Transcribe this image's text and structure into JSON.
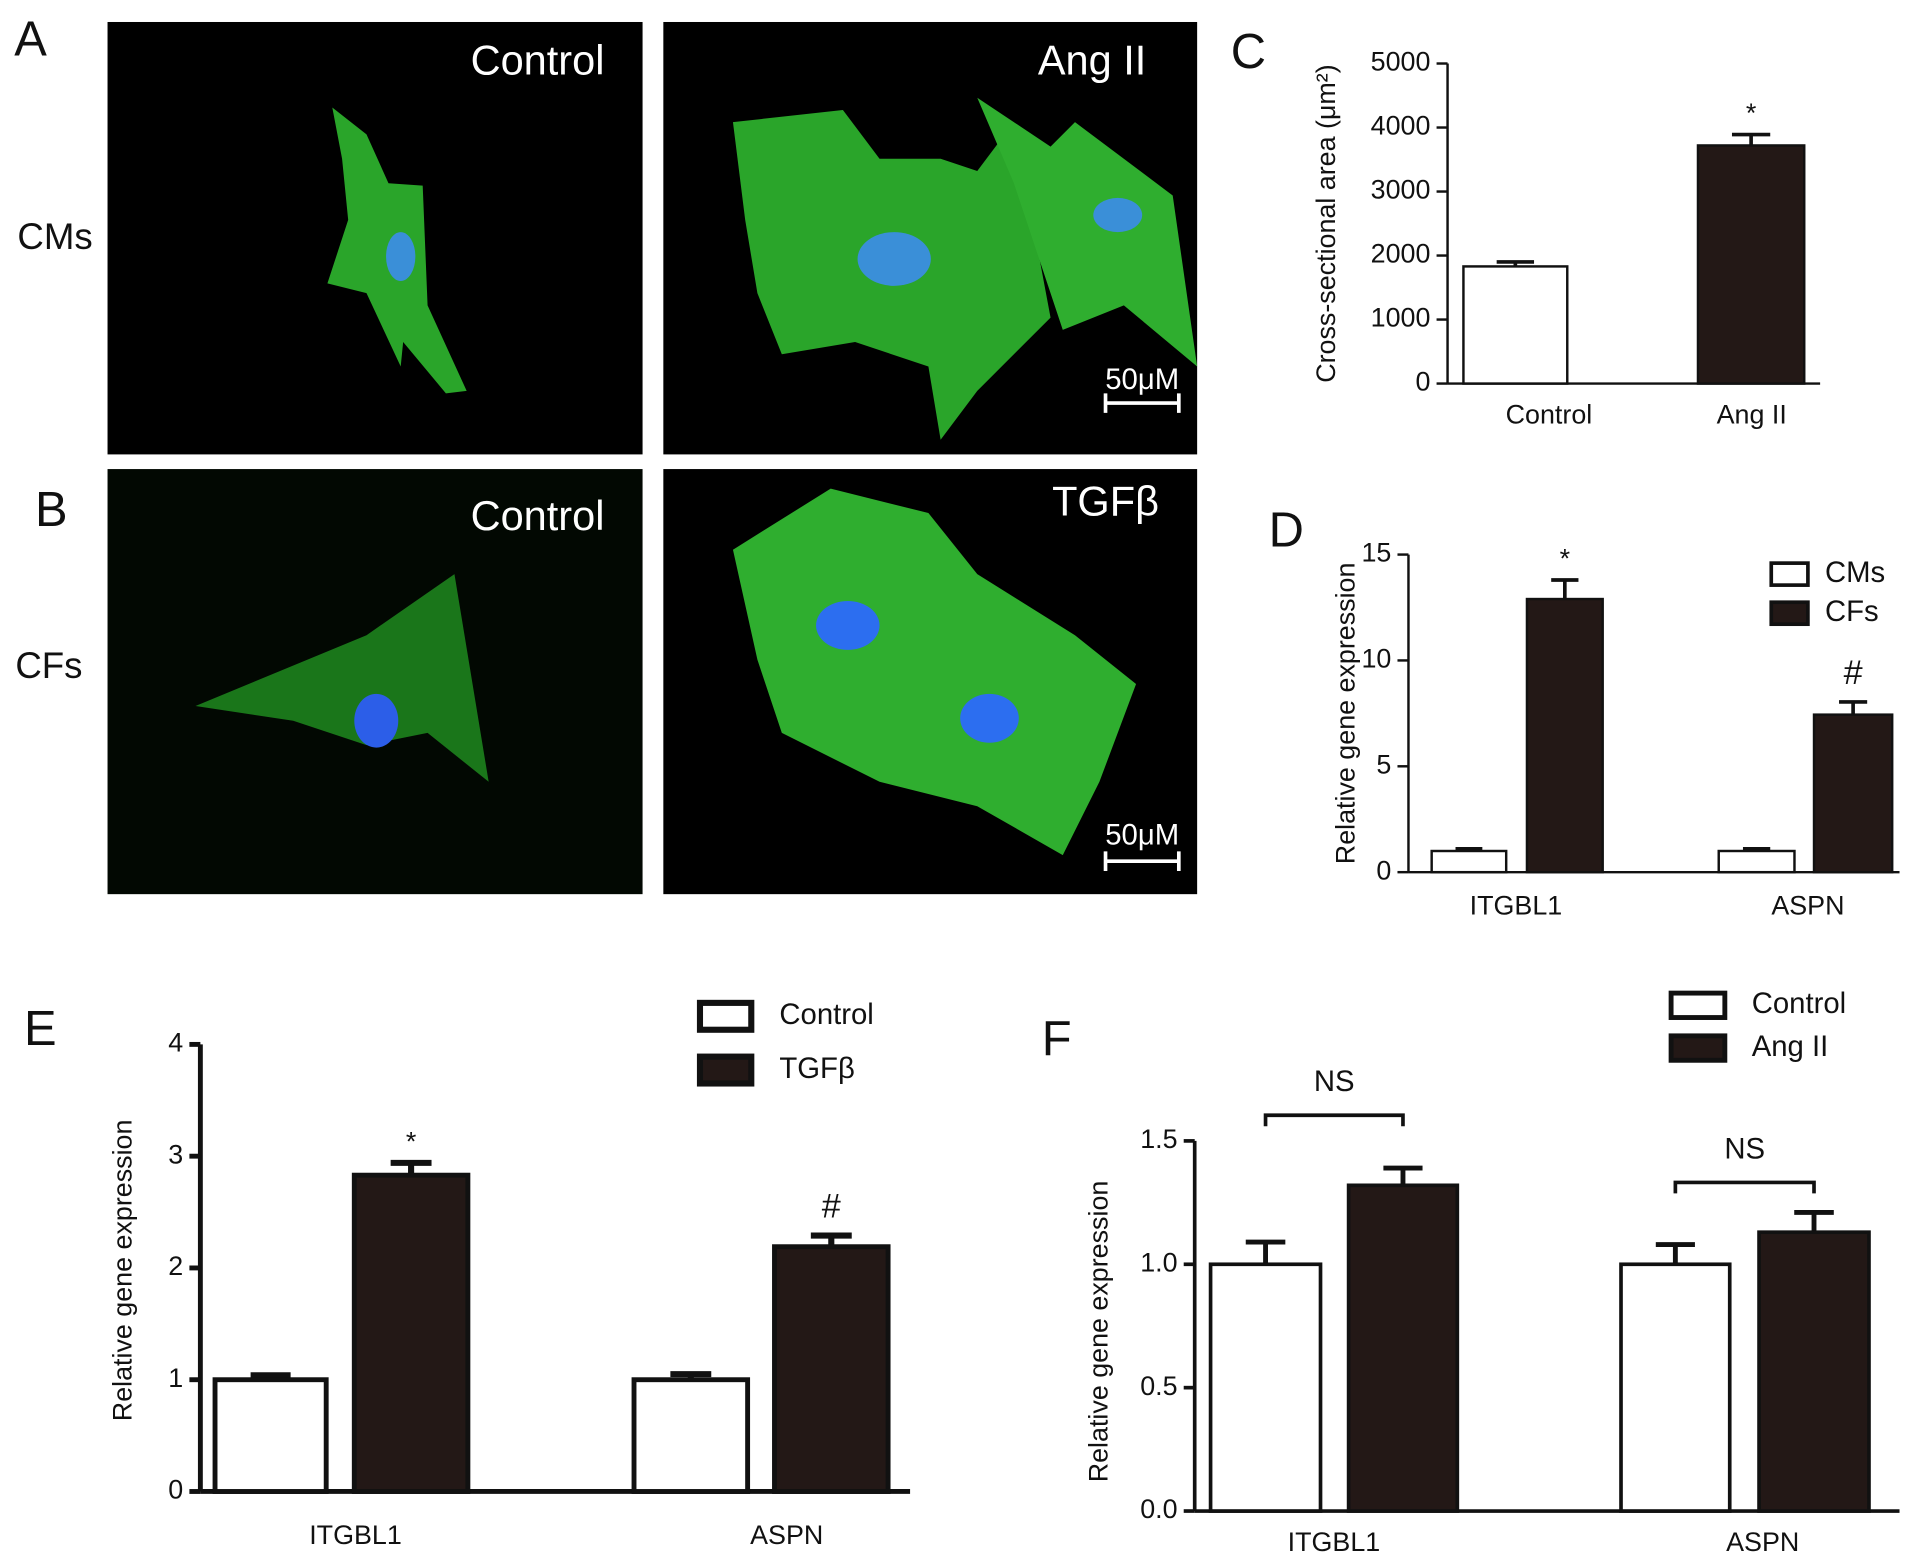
{
  "figure": {
    "rows": [
      {
        "label": "A",
        "row_label": "CMs",
        "panes": [
          {
            "title": "Control"
          },
          {
            "title": "Ang II",
            "scale_bar": "50μM"
          }
        ]
      },
      {
        "label": "B",
        "row_label": "CFs",
        "panes": [
          {
            "title": "Control"
          },
          {
            "title": "TGFβ",
            "scale_bar": "50μM"
          }
        ]
      }
    ]
  },
  "chart_data": [
    {
      "type": "bar",
      "label": "C",
      "ylabel": "Cross-sectional area (μm²)",
      "categories": [
        "Control",
        "Ang II"
      ],
      "values": [
        1830,
        3720
      ],
      "errors": [
        70,
        170
      ],
      "colors": [
        "#ffffff",
        "#231816"
      ],
      "ylim": [
        0,
        5000
      ],
      "yticks": [
        0,
        1000,
        2000,
        3000,
        4000,
        5000
      ],
      "annotations": [
        {
          "category": "Ang II",
          "text": "*"
        }
      ]
    },
    {
      "type": "bar",
      "label": "D",
      "ylabel": "Relative gene expression",
      "categories": [
        "ITGBL1",
        "ASPN"
      ],
      "series": [
        {
          "name": "CMs",
          "color": "#ffffff",
          "values": [
            1.0,
            1.0
          ],
          "errors": [
            0.1,
            0.1
          ]
        },
        {
          "name": "CFs",
          "color": "#231816",
          "values": [
            12.9,
            7.44
          ],
          "errors": [
            0.9,
            0.6
          ]
        }
      ],
      "ylim": [
        0,
        15
      ],
      "yticks": [
        0,
        5,
        10,
        15
      ],
      "annotations": [
        {
          "category": "ITGBL1",
          "series": "CFs",
          "text": "*"
        },
        {
          "category": "ASPN",
          "series": "CFs",
          "text": "#"
        }
      ]
    },
    {
      "type": "bar",
      "label": "E",
      "ylabel": "Relative gene expression",
      "categories": [
        "ITGBL1",
        "ASPN"
      ],
      "series": [
        {
          "name": "Control",
          "color": "#ffffff",
          "values": [
            1.0,
            1.0
          ],
          "errors": [
            0.04,
            0.05
          ]
        },
        {
          "name": "TGFβ",
          "color": "#231816",
          "values": [
            2.83,
            2.19
          ],
          "errors": [
            0.11,
            0.1
          ]
        }
      ],
      "ylim": [
        0,
        4
      ],
      "yticks": [
        0,
        1,
        2,
        3,
        4
      ],
      "annotations": [
        {
          "category": "ITGBL1",
          "series": "TGFβ",
          "text": "*"
        },
        {
          "category": "ASPN",
          "series": "TGFβ",
          "text": "#"
        }
      ]
    },
    {
      "type": "bar",
      "label": "F",
      "ylabel": "Relative gene expression",
      "categories": [
        "ITGBL1",
        "ASPN"
      ],
      "series": [
        {
          "name": "Control",
          "color": "#ffffff",
          "values": [
            1.0,
            1.0
          ],
          "errors": [
            0.09,
            0.08
          ]
        },
        {
          "name": "Ang II",
          "color": "#231816",
          "values": [
            1.32,
            1.13
          ],
          "errors": [
            0.07,
            0.08
          ]
        }
      ],
      "ylim": [
        0,
        1.5
      ],
      "yticks": [
        {
          "value": 0,
          "label": "0.0"
        },
        {
          "value": 0.5,
          "label": "0.5"
        },
        {
          "value": 1,
          "label": "1.0"
        },
        {
          "value": 1.5,
          "label": "1.5"
        }
      ],
      "annotations": [
        {
          "category": "ITGBL1",
          "text": "NS"
        },
        {
          "category": "ASPN",
          "text": "NS"
        }
      ]
    }
  ]
}
